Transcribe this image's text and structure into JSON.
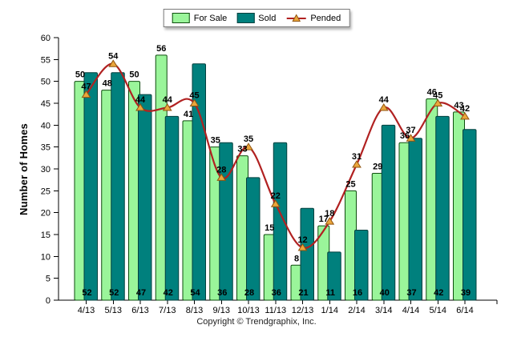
{
  "chart_data": {
    "type": "bar",
    "title": "",
    "xlabel": "",
    "ylabel": "Number of Homes",
    "ylim": [
      0,
      60
    ],
    "ytick_step": 5,
    "grid": false,
    "legend_position": "top-center",
    "categories": [
      "4/13",
      "5/13",
      "6/13",
      "7/13",
      "8/13",
      "9/13",
      "10/13",
      "11/13",
      "12/13",
      "1/14",
      "2/14",
      "3/14",
      "4/14",
      "5/14",
      "6/14"
    ],
    "series": [
      {
        "name": "For Sale",
        "type": "bar",
        "color": "#9af59a",
        "border": "#0e4d0e",
        "values": [
          50,
          48,
          50,
          56,
          41,
          35,
          33,
          15,
          8,
          17,
          25,
          29,
          36,
          46,
          43
        ]
      },
      {
        "name": "Sold",
        "type": "bar",
        "color": "#00807d",
        "border": "#02403e",
        "values": [
          52,
          52,
          47,
          42,
          54,
          36,
          28,
          36,
          21,
          11,
          16,
          40,
          37,
          42,
          39
        ]
      },
      {
        "name": "Pended",
        "type": "line",
        "color": "#b12121",
        "marker": "triangle",
        "marker_fill": "#eaa63c",
        "marker_edge": "#91540f",
        "values": [
          47,
          54,
          44,
          44,
          45,
          28,
          35,
          22,
          12,
          18,
          31,
          44,
          37,
          45,
          42
        ]
      }
    ]
  },
  "footer": {
    "copyright": "Copyright © Trendgraphix, Inc."
  }
}
